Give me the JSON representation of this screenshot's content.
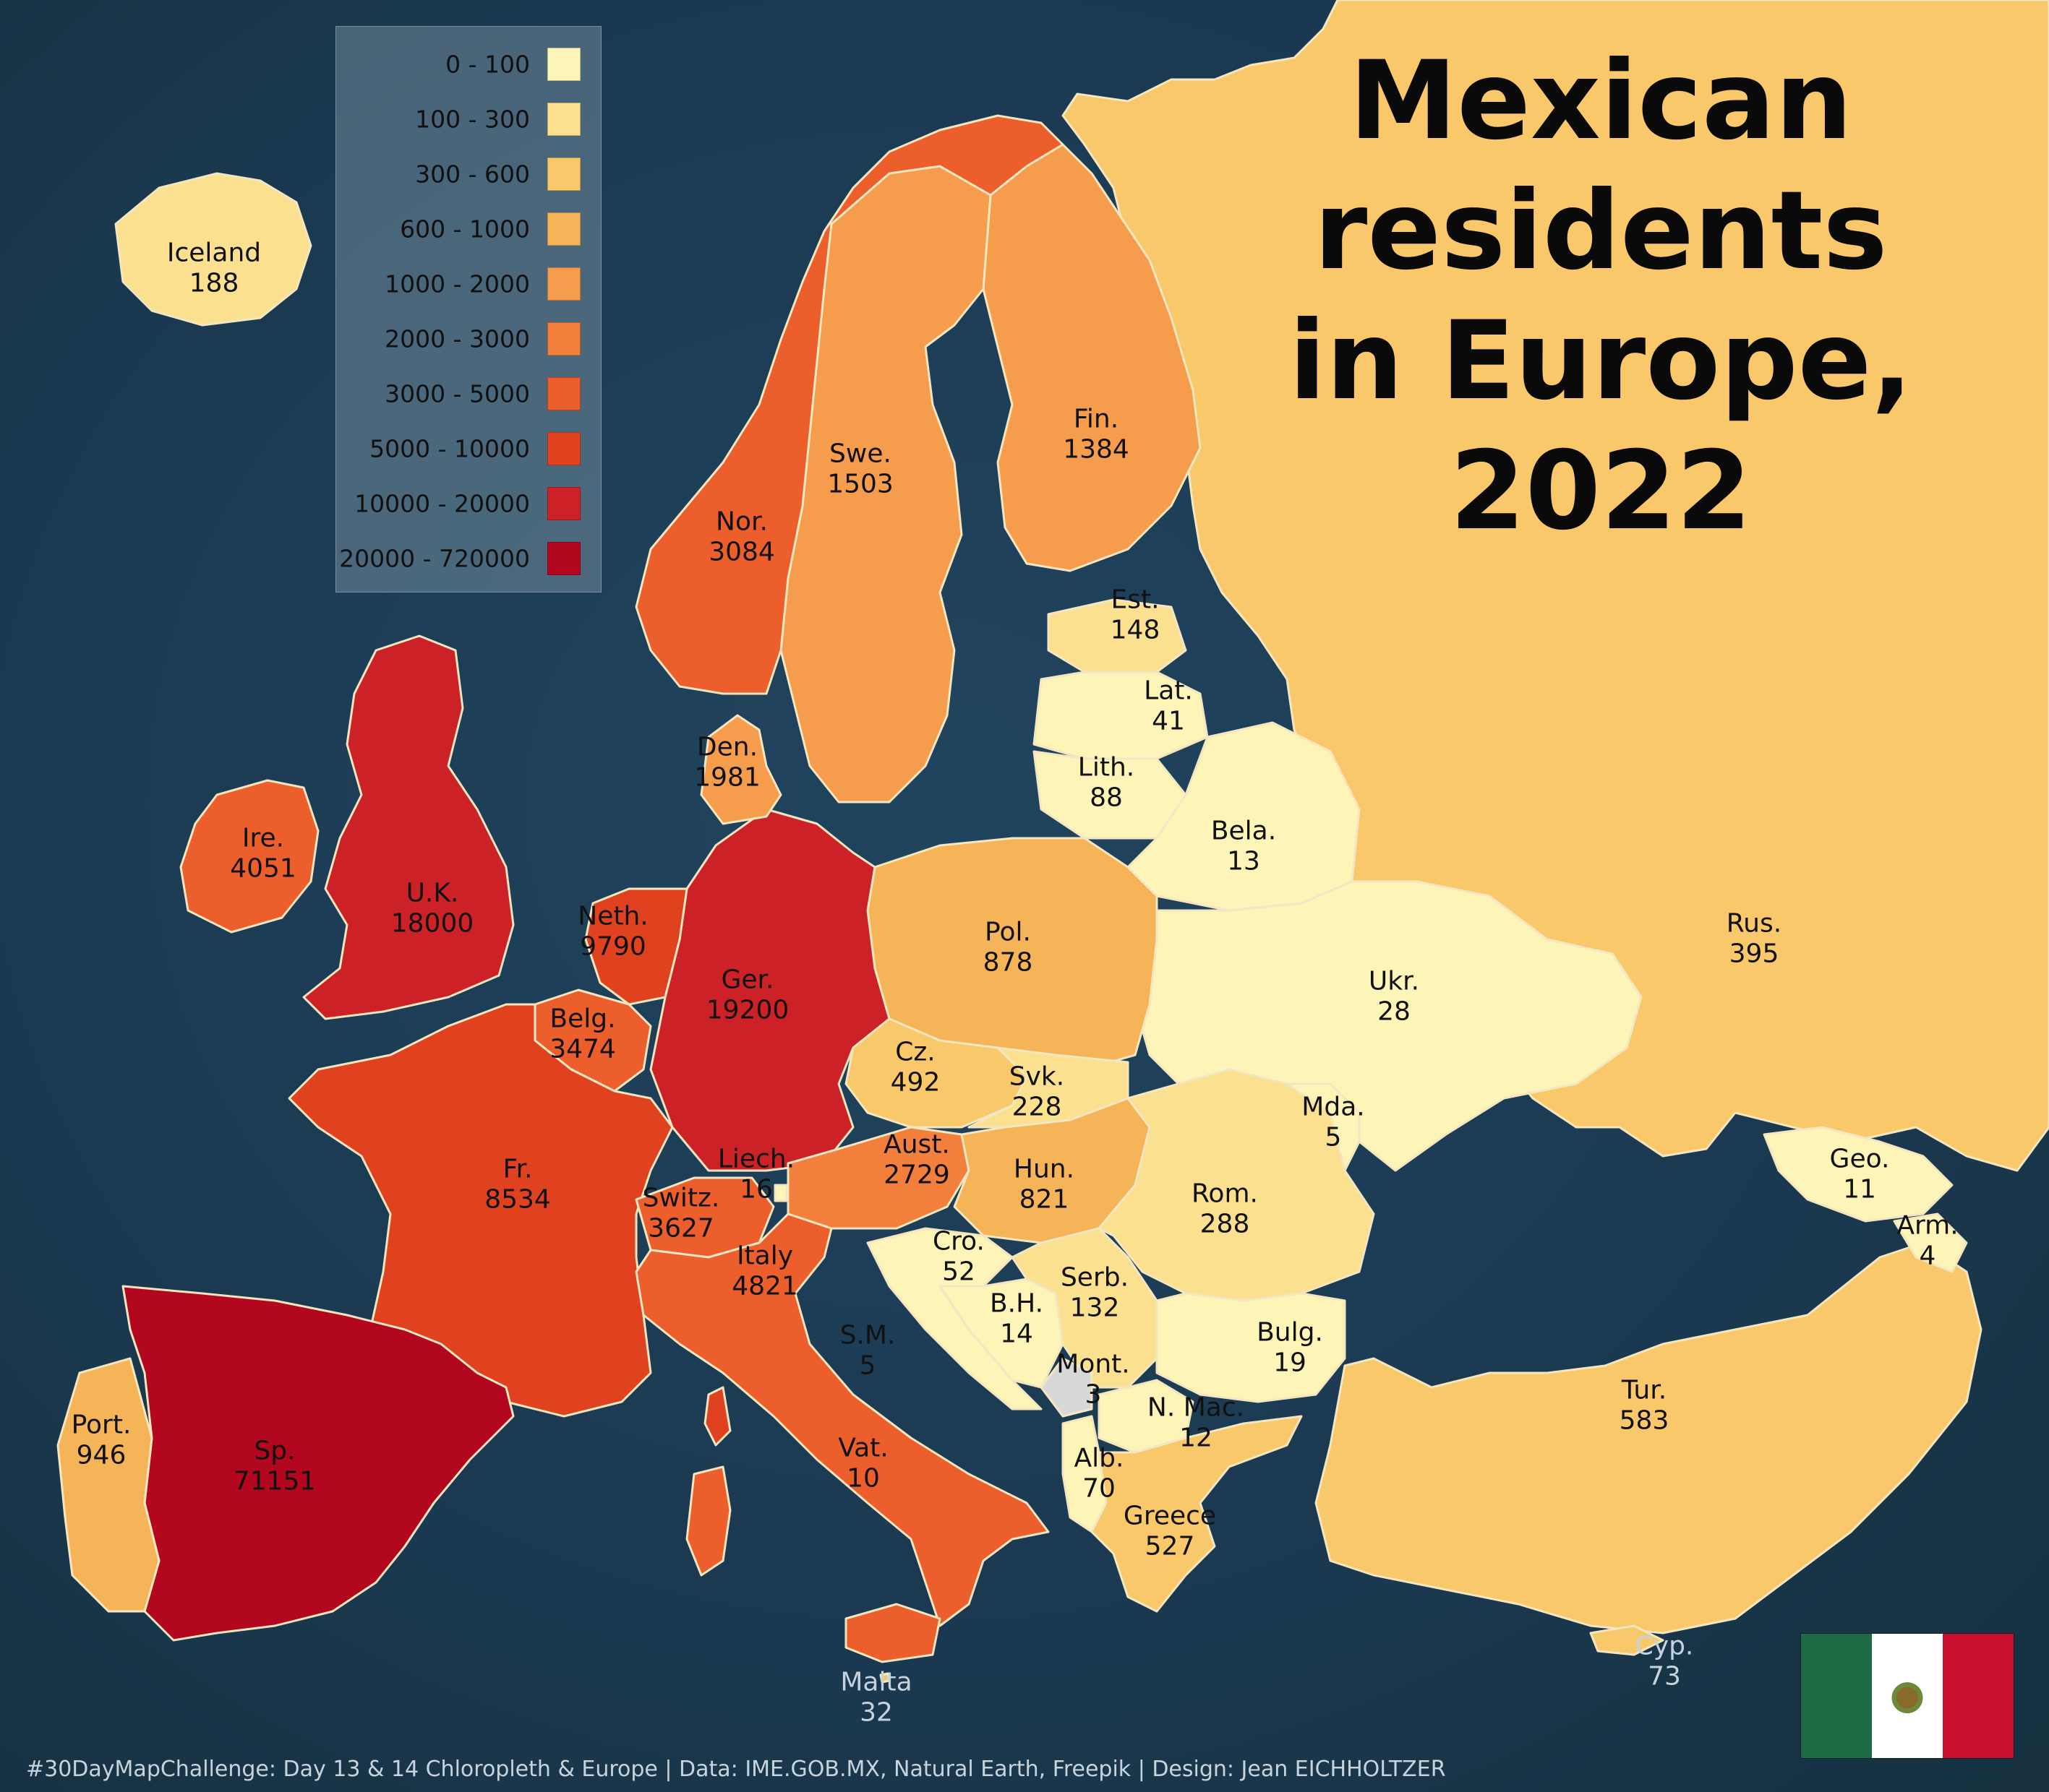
{
  "title": {
    "line1": "Mexican",
    "line2": "residents",
    "line3": "in Europe,",
    "line4": "2022"
  },
  "legend": {
    "items": [
      {
        "label": "0 - 100",
        "color": "#fdf4b8"
      },
      {
        "label": "100 - 300",
        "color": "#fbe08f"
      },
      {
        "label": "300 - 600",
        "color": "#f8c86a"
      },
      {
        "label": "600 - 1000",
        "color": "#f6b458"
      },
      {
        "label": "1000 - 2000",
        "color": "#f59d4d"
      },
      {
        "label": "2000 - 3000",
        "color": "#f27f3c"
      },
      {
        "label": "3000 - 5000",
        "color": "#ec5e2c"
      },
      {
        "label": "5000 - 10000",
        "color": "#e04220"
      },
      {
        "label": "10000 - 20000",
        "color": "#cc2126"
      },
      {
        "label": "20000 - 720000",
        "color": "#b3061f"
      }
    ]
  },
  "countries": [
    {
      "id": "iceland",
      "name": "Iceland",
      "value": "188"
    },
    {
      "id": "norway",
      "name": "Nor.",
      "value": "3084"
    },
    {
      "id": "sweden",
      "name": "Swe.",
      "value": "1503"
    },
    {
      "id": "finland",
      "name": "Fin.",
      "value": "1384"
    },
    {
      "id": "estonia",
      "name": "Est.",
      "value": "148"
    },
    {
      "id": "latvia",
      "name": "Lat.",
      "value": "41"
    },
    {
      "id": "lithuania",
      "name": "Lith.",
      "value": "88"
    },
    {
      "id": "denmark",
      "name": "Den.",
      "value": "1981"
    },
    {
      "id": "ireland",
      "name": "Ire.",
      "value": "4051"
    },
    {
      "id": "uk",
      "name": "U.K.",
      "value": "18000"
    },
    {
      "id": "netherlands",
      "name": "Neth.",
      "value": "9790"
    },
    {
      "id": "belgium",
      "name": "Belg.",
      "value": "3474"
    },
    {
      "id": "germany",
      "name": "Ger.",
      "value": "19200"
    },
    {
      "id": "poland",
      "name": "Pol.",
      "value": "878"
    },
    {
      "id": "belarus",
      "name": "Bela.",
      "value": "13"
    },
    {
      "id": "russia",
      "name": "Rus.",
      "value": "395"
    },
    {
      "id": "ukraine",
      "name": "Ukr.",
      "value": "28"
    },
    {
      "id": "czechia",
      "name": "Cz.",
      "value": "492"
    },
    {
      "id": "slovakia",
      "name": "Svk.",
      "value": "228"
    },
    {
      "id": "moldova",
      "name": "Mda.",
      "value": "5"
    },
    {
      "id": "france",
      "name": "Fr.",
      "value": "8534"
    },
    {
      "id": "liechtenstein",
      "name": "Liech.",
      "value": "16"
    },
    {
      "id": "austria",
      "name": "Aust.",
      "value": "2729"
    },
    {
      "id": "hungary",
      "name": "Hun.",
      "value": "821"
    },
    {
      "id": "switzerland",
      "name": "Switz.",
      "value": "3627"
    },
    {
      "id": "romania",
      "name": "Rom.",
      "value": "288"
    },
    {
      "id": "georgia",
      "name": "Geo.",
      "value": "11"
    },
    {
      "id": "armenia",
      "name": "Arm.",
      "value": "4"
    },
    {
      "id": "croatia",
      "name": "Cro.",
      "value": "52"
    },
    {
      "id": "italy",
      "name": "Italy",
      "value": "4821"
    },
    {
      "id": "serbia",
      "name": "Serb.",
      "value": "132"
    },
    {
      "id": "bosnia",
      "name": "B.H.",
      "value": "14"
    },
    {
      "id": "sanmarino",
      "name": "S.M.",
      "value": "5"
    },
    {
      "id": "bulgaria",
      "name": "Bulg.",
      "value": "19"
    },
    {
      "id": "montenegro",
      "name": "Mont.",
      "value": "3"
    },
    {
      "id": "northmacedonia",
      "name": "N. Mac.",
      "value": "12"
    },
    {
      "id": "portugal",
      "name": "Port.",
      "value": "946"
    },
    {
      "id": "spain",
      "name": "Sp.",
      "value": "71151"
    },
    {
      "id": "vatican",
      "name": "Vat.",
      "value": "10"
    },
    {
      "id": "turkey",
      "name": "Tur.",
      "value": "583"
    },
    {
      "id": "albania",
      "name": "Alb.",
      "value": "70"
    },
    {
      "id": "greece",
      "name": "Greece",
      "value": "527"
    },
    {
      "id": "cyprus",
      "name": "Cyp.",
      "value": "73"
    },
    {
      "id": "malta",
      "name": "Malta",
      "value": "32"
    }
  ],
  "credits": "#30DayMapChallenge: Day 13 & 14 Chloropleth & Europe | Data: IME.GOB.MX, Natural Earth, Freepik | Design: Jean EICHHOLTZER",
  "flag": {
    "green": "#1e6b45",
    "white": "#ffffff",
    "red": "#c8102e"
  }
}
